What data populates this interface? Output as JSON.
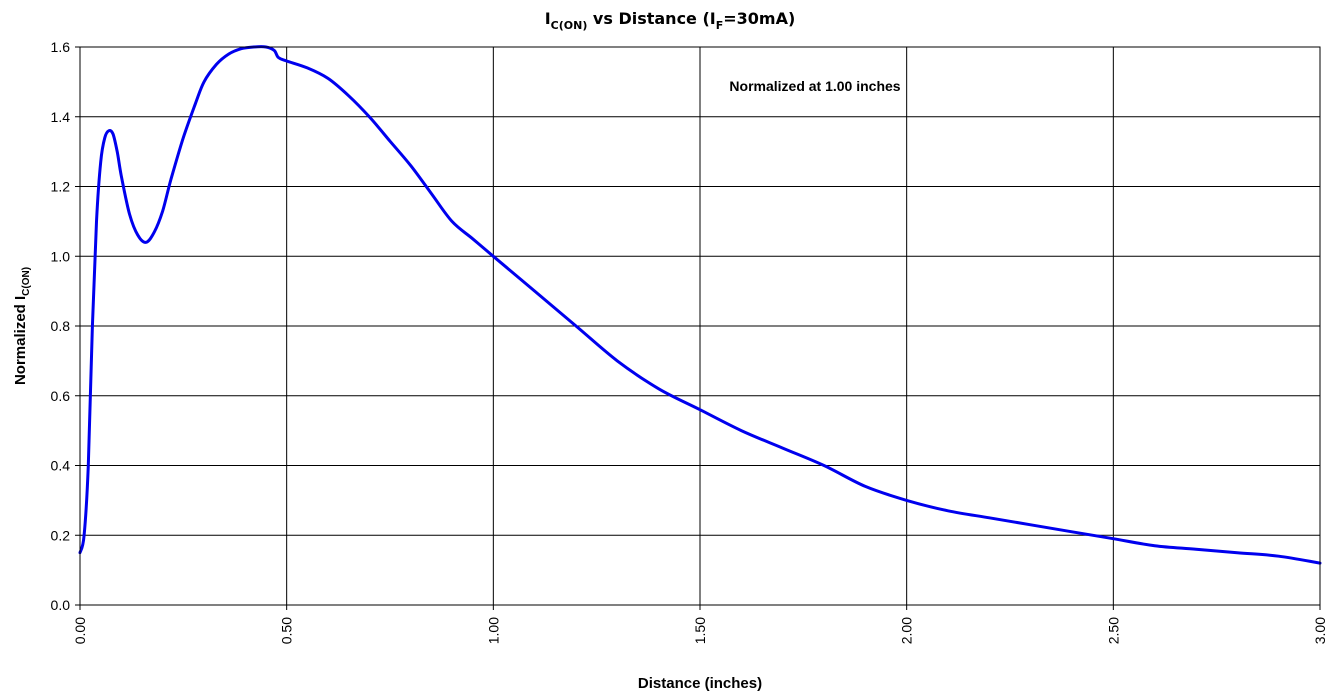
{
  "chart_data": {
    "type": "line",
    "title": {
      "main": "I",
      "main_sub": "C(ON)",
      "middle": " vs Distance (I",
      "middle_sub": "F",
      "end": "=30mA)"
    },
    "xlabel": "Distance (inches)",
    "ylabel": {
      "main": "Normalized I",
      "sub": "C(ON)"
    },
    "annotation": "Normalized at 1.00 inches",
    "xlim": [
      0,
      3
    ],
    "ylim": [
      0,
      1.6
    ],
    "x_ticks": [
      0,
      0.5,
      1,
      1.5,
      2,
      2.5,
      3
    ],
    "x_tick_labels": [
      "0.00",
      "0.50",
      "1.00",
      "1.50",
      "2.00",
      "2.50",
      "3.00"
    ],
    "y_ticks": [
      0,
      0.2,
      0.4,
      0.6,
      0.8,
      1.0,
      1.2,
      1.4,
      1.6
    ],
    "y_tick_labels": [
      "0.0",
      "0.2",
      "0.4",
      "0.6",
      "0.8",
      "1.0",
      "1.2",
      "1.4",
      "1.6"
    ],
    "grid": true,
    "series": [
      {
        "color": "#0000ee",
        "x": [
          0.0,
          0.01,
          0.02,
          0.03,
          0.04,
          0.05,
          0.06,
          0.07,
          0.08,
          0.09,
          0.1,
          0.12,
          0.14,
          0.16,
          0.18,
          0.2,
          0.22,
          0.25,
          0.28,
          0.3,
          0.33,
          0.36,
          0.39,
          0.42,
          0.45,
          0.47,
          0.48,
          0.5,
          0.55,
          0.6,
          0.65,
          0.7,
          0.75,
          0.8,
          0.85,
          0.9,
          0.95,
          1.0,
          1.1,
          1.2,
          1.3,
          1.4,
          1.5,
          1.6,
          1.7,
          1.8,
          1.9,
          2.0,
          2.1,
          2.2,
          2.3,
          2.4,
          2.5,
          2.6,
          2.7,
          2.8,
          2.9,
          3.0
        ],
        "y": [
          0.15,
          0.2,
          0.4,
          0.8,
          1.1,
          1.27,
          1.34,
          1.36,
          1.35,
          1.3,
          1.23,
          1.12,
          1.06,
          1.04,
          1.07,
          1.13,
          1.22,
          1.34,
          1.44,
          1.5,
          1.55,
          1.58,
          1.595,
          1.6,
          1.6,
          1.59,
          1.57,
          1.56,
          1.54,
          1.51,
          1.46,
          1.4,
          1.33,
          1.26,
          1.18,
          1.1,
          1.05,
          1.0,
          0.9,
          0.8,
          0.7,
          0.62,
          0.56,
          0.5,
          0.45,
          0.4,
          0.34,
          0.3,
          0.27,
          0.25,
          0.23,
          0.21,
          0.19,
          0.17,
          0.16,
          0.15,
          0.14,
          0.12
        ]
      }
    ]
  }
}
